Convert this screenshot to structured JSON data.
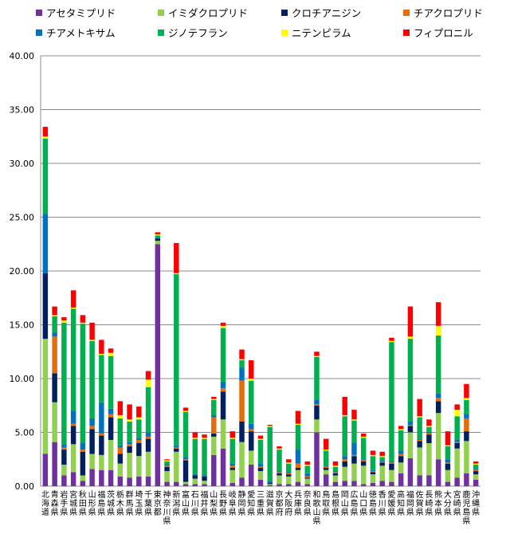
{
  "chart_data": {
    "type": "bar",
    "stacked": true,
    "title": "",
    "xlabel": "",
    "ylabel": "",
    "ylim": [
      0,
      40
    ],
    "yticks": [
      "0.00",
      "5.00",
      "10.00",
      "15.00",
      "20.00",
      "25.00",
      "30.00",
      "35.00",
      "40.00"
    ],
    "grid": true,
    "legend_position": "top",
    "categories": [
      "北海道",
      "青森県",
      "岩手県",
      "宮城県",
      "秋田県",
      "山形県",
      "福島県",
      "茨城県",
      "栃木県",
      "群馬県",
      "埼玉県",
      "千葉県",
      "東京都",
      "神奈川県",
      "新潟県",
      "富山県",
      "石川県",
      "福井県",
      "山梨県",
      "長野県",
      "岐阜県",
      "静岡県",
      "愛知県",
      "三重県",
      "滋賀県",
      "京都府",
      "大阪府",
      "兵庫県",
      "奈良県",
      "和歌山県",
      "鳥取県",
      "島根県",
      "岡山県",
      "広島県",
      "山口県",
      "徳島県",
      "香川県",
      "愛媛県",
      "高知県",
      "福岡県",
      "佐賀県",
      "長崎県",
      "熊本県",
      "大分県",
      "宮崎県",
      "鹿児島県",
      "沖縄県"
    ],
    "series": [
      {
        "name": "アセタミプリド",
        "color": "#7030A0",
        "values": [
          3.0,
          4.1,
          1.0,
          1.3,
          0.5,
          1.6,
          1.5,
          1.5,
          0.9,
          0.8,
          0.9,
          0.9,
          22.5,
          0.4,
          0.4,
          0.2,
          0.2,
          0.2,
          2.9,
          3.5,
          0.3,
          0.8,
          2.0,
          0.6,
          0.1,
          0.2,
          0.2,
          0.4,
          0.2,
          5.0,
          1.1,
          0.4,
          0.5,
          0.5,
          0.2,
          0.3,
          0.5,
          0.4,
          1.2,
          2.6,
          1.0,
          1.0,
          2.5,
          0.4,
          0.8,
          1.2,
          0.6
        ]
      },
      {
        "name": "イミダクロプリド",
        "color": "#92D050",
        "values": [
          10.7,
          3.7,
          1.0,
          2.6,
          0.5,
          1.4,
          1.4,
          2.8,
          1.2,
          2.3,
          1.9,
          2.3,
          0.3,
          1.0,
          2.8,
          0.2,
          0.5,
          0.3,
          1.7,
          2.7,
          1.2,
          3.3,
          1.3,
          0.8,
          0.1,
          0.8,
          0.7,
          1.1,
          0.5,
          1.2,
          0.4,
          0.6,
          1.3,
          1.6,
          1.7,
          0.8,
          1.4,
          1.1,
          1.0,
          2.4,
          2.6,
          3.0,
          4.3,
          1.1,
          2.7,
          3.0,
          0.5
        ]
      },
      {
        "name": "クロチアニジン",
        "color": "#002060",
        "values": [
          6.1,
          2.7,
          1.4,
          1.7,
          2.2,
          2.3,
          1.8,
          2.1,
          0.9,
          0.6,
          1.2,
          1.2,
          0.2,
          0.4,
          0.3,
          2.0,
          0.3,
          0.4,
          0.3,
          2.6,
          0.2,
          1.9,
          1.8,
          0.3,
          0.1,
          0.2,
          0.2,
          0.2,
          0.1,
          1.3,
          0.2,
          0.2,
          0.5,
          0.7,
          0.4,
          0.2,
          0.3,
          0.6,
          0.6,
          0.6,
          0.6,
          0.8,
          1.1,
          0.6,
          0.5,
          0.9,
          0.3
        ]
      },
      {
        "name": "チアクロプリド",
        "color": "#E46C0A",
        "values": [
          0.0,
          3.4,
          0.2,
          0.2,
          0.2,
          0.3,
          0.2,
          0.3,
          0.6,
          0.2,
          0.3,
          0.2,
          0.0,
          0.1,
          0.1,
          0.1,
          0.0,
          0.0,
          1.5,
          0.3,
          0.2,
          3.8,
          0.2,
          0.1,
          0.0,
          0.1,
          0.1,
          0.4,
          0.1,
          0.1,
          0.1,
          0.1,
          0.2,
          0.1,
          0.1,
          0.1,
          0.1,
          0.1,
          0.2,
          0.1,
          0.1,
          0.1,
          0.3,
          0.1,
          0.1,
          1.2,
          0.1
        ]
      },
      {
        "name": "チアメトキサム",
        "color": "#0070C0",
        "values": [
          5.5,
          0.4,
          0.3,
          1.2,
          0.6,
          0.7,
          2.9,
          0.5,
          0.2,
          0.2,
          0.2,
          0.4,
          0.1,
          0.1,
          0.2,
          0.2,
          0.1,
          0.1,
          0.2,
          0.6,
          0.2,
          1.2,
          0.5,
          0.3,
          0.2,
          0.1,
          0.1,
          1.3,
          0.3,
          0.4,
          0.1,
          0.1,
          0.3,
          1.1,
          0.1,
          0.1,
          0.1,
          0.1,
          0.3,
          0.3,
          0.1,
          0.1,
          0.4,
          0.3,
          0.2,
          0.4,
          0.1
        ]
      },
      {
        "name": "ジノテフラン",
        "color": "#00B050",
        "values": [
          7.0,
          1.5,
          11.3,
          9.5,
          11.1,
          7.2,
          4.4,
          4.9,
          2.5,
          1.9,
          1.7,
          4.2,
          0.2,
          0.3,
          15.9,
          4.2,
          3.3,
          3.4,
          1.4,
          5.0,
          2.3,
          0.7,
          4.0,
          2.2,
          5.0,
          2.0,
          0.8,
          2.3,
          0.7,
          4.0,
          1.4,
          0.4,
          3.7,
          2.1,
          2.0,
          1.3,
          0.3,
          11.1,
          1.9,
          7.7,
          2.0,
          0.5,
          5.4,
          1.2,
          2.2,
          1.3,
          0.4
        ]
      },
      {
        "name": "ニテンピラム",
        "color": "#FFFF00",
        "values": [
          0.2,
          0.1,
          0.2,
          0.1,
          0.1,
          0.1,
          0.1,
          0.3,
          0.3,
          0.2,
          0.2,
          0.7,
          0.1,
          0.1,
          0.1,
          0.1,
          0.1,
          0.1,
          0.1,
          0.2,
          0.1,
          0.1,
          0.2,
          0.1,
          0.1,
          0.1,
          0.1,
          0.1,
          0.1,
          0.1,
          0.1,
          0.1,
          0.1,
          0.1,
          0.1,
          0.1,
          0.1,
          0.1,
          0.1,
          0.2,
          0.1,
          0.1,
          0.9,
          0.1,
          0.6,
          0.2,
          0.1
        ]
      },
      {
        "name": "フィプロニル",
        "color": "#FF0000",
        "values": [
          0.9,
          0.8,
          0.3,
          1.6,
          0.7,
          1.6,
          1.3,
          0.4,
          1.3,
          1.4,
          1.0,
          0.8,
          0.2,
          0.1,
          2.8,
          0.3,
          0.5,
          0.3,
          0.2,
          0.3,
          0.6,
          0.9,
          1.7,
          0.3,
          0.1,
          0.2,
          0.3,
          1.2,
          0.3,
          0.4,
          1.0,
          0.4,
          1.7,
          0.9,
          0.3,
          0.4,
          0.4,
          0.3,
          0.3,
          2.8,
          1.6,
          0.6,
          2.2,
          1.3,
          0.5,
          1.3,
          0.2
        ]
      }
    ]
  }
}
